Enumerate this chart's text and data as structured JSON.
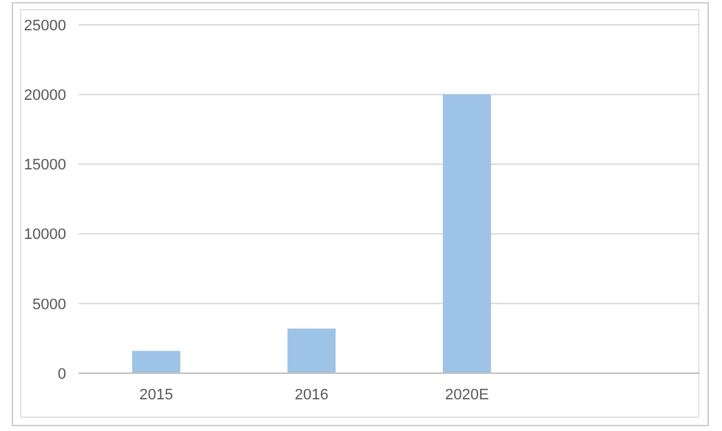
{
  "chart_data": {
    "type": "bar",
    "categories": [
      "2015",
      "2016",
      "2020E",
      null
    ],
    "values": [
      1600,
      3200,
      20000,
      null
    ],
    "color": "#9dc3e6",
    "ylim": [
      0,
      25000
    ],
    "yticks": [
      0,
      5000,
      10000,
      15000,
      20000,
      25000
    ],
    "grid": "y"
  }
}
